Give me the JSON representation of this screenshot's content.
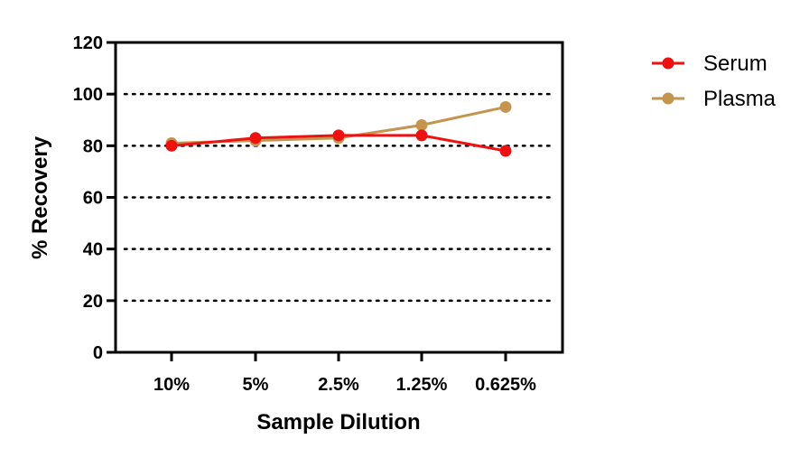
{
  "chart_data": {
    "type": "line",
    "title": "",
    "xlabel": "Sample Dilution",
    "ylabel": "% Recovery",
    "categories": [
      "10%",
      "5%",
      "2.5%",
      "1.25%",
      "0.625%"
    ],
    "ylim": [
      0,
      120
    ],
    "yticks": [
      "0",
      "20",
      "40",
      "60",
      "80",
      "100",
      "120"
    ],
    "grid": "dotted horizontal at 20, 40, 60, 80, 100",
    "legend_position": "top-right, outside plot",
    "series": [
      {
        "name": "Serum",
        "color": "#ee1111",
        "values": [
          80,
          83,
          84,
          84,
          78
        ]
      },
      {
        "name": "Plasma",
        "color": "#c4954f",
        "values": [
          81,
          82,
          83,
          88,
          95
        ]
      }
    ]
  }
}
